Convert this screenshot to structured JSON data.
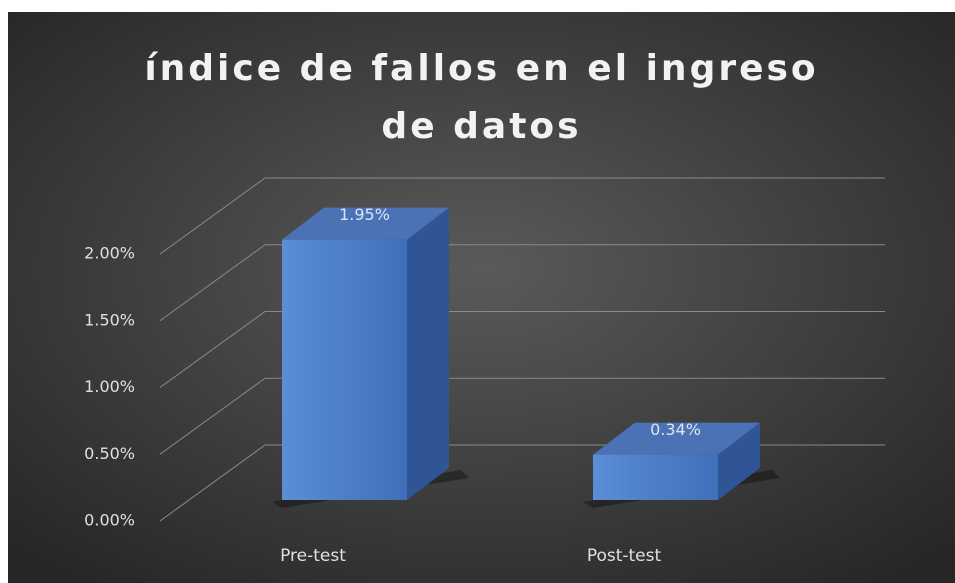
{
  "chart_data": {
    "type": "bar3d",
    "title": "índice de fallos en el ingreso de datos",
    "categories": [
      "Pre-test",
      "Post-test"
    ],
    "values": [
      1.95,
      0.34
    ],
    "value_labels": [
      "1.95%",
      "0.34%"
    ],
    "color": "#4f81c7",
    "ylim": [
      0,
      2
    ],
    "yticks": [
      {
        "value": 0,
        "label": "0.00%"
      },
      {
        "value": 0.5,
        "label": "0.50%"
      },
      {
        "value": 1,
        "label": "1.00%"
      },
      {
        "value": 1.5,
        "label": "1.50%"
      },
      {
        "value": 2,
        "label": "2.00%"
      }
    ],
    "grid": true
  }
}
